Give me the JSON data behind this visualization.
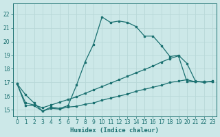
{
  "xlabel": "Humidex (Indice chaleur)",
  "background_color": "#cce8e8",
  "grid_color": "#b8d8d8",
  "line_color": "#1a7070",
  "xlim": [
    -0.5,
    23.5
  ],
  "ylim": [
    14.5,
    22.8
  ],
  "xticks": [
    0,
    1,
    2,
    3,
    4,
    5,
    6,
    7,
    8,
    9,
    10,
    11,
    12,
    13,
    14,
    15,
    16,
    17,
    18,
    19,
    20,
    21,
    22,
    23
  ],
  "yticks": [
    15,
    16,
    17,
    18,
    19,
    20,
    21,
    22
  ],
  "curve1_x": [
    0,
    1,
    2,
    3,
    4,
    5,
    6,
    7,
    8,
    9,
    10,
    11,
    12,
    13,
    14,
    15,
    16,
    17,
    18,
    19,
    20,
    21,
    22,
    23
  ],
  "curve1_y": [
    16.9,
    16.1,
    15.5,
    14.9,
    15.2,
    15.1,
    15.3,
    16.8,
    18.5,
    19.8,
    21.8,
    21.4,
    21.5,
    21.4,
    21.1,
    20.4,
    20.4,
    19.7,
    18.9,
    19.0,
    18.4,
    17.1,
    17.0,
    17.1
  ],
  "curve2_x": [
    0,
    1,
    2,
    3,
    4,
    5,
    6,
    7,
    8,
    9,
    10,
    11,
    12,
    13,
    14,
    15,
    16,
    17,
    18,
    19,
    20,
    21,
    22,
    23
  ],
  "curve2_y": [
    16.9,
    15.5,
    15.35,
    15.15,
    15.35,
    15.55,
    15.75,
    15.95,
    16.2,
    16.45,
    16.7,
    16.95,
    17.2,
    17.45,
    17.7,
    17.95,
    18.2,
    18.5,
    18.75,
    18.95,
    17.05,
    17.05,
    17.05,
    17.05
  ],
  "curve3_x": [
    0,
    1,
    2,
    3,
    4,
    5,
    6,
    7,
    8,
    9,
    10,
    11,
    12,
    13,
    14,
    15,
    16,
    17,
    18,
    19,
    20,
    21,
    22,
    23
  ],
  "curve3_y": [
    16.9,
    15.3,
    15.3,
    14.9,
    15.1,
    15.05,
    15.2,
    15.25,
    15.4,
    15.5,
    15.7,
    15.85,
    16.0,
    16.15,
    16.35,
    16.5,
    16.65,
    16.8,
    17.0,
    17.1,
    17.2,
    17.05,
    17.05,
    17.05
  ]
}
